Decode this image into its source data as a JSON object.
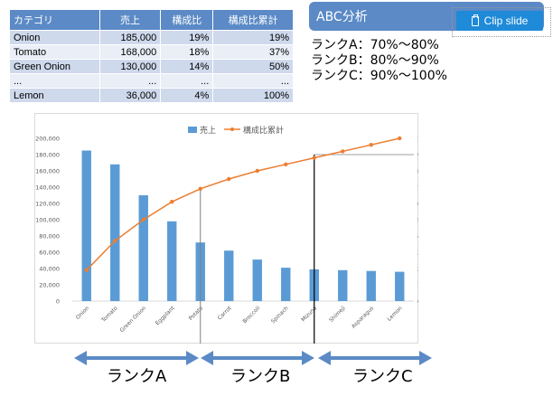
{
  "table": {
    "headers": [
      "カテゴリ",
      "売上",
      "構成比",
      "構成比累計"
    ],
    "rows": [
      [
        "Onion",
        "185,000",
        "19%",
        "19%"
      ],
      [
        "Tomato",
        "168,000",
        "18%",
        "37%"
      ],
      [
        "Green Onion",
        "130,000",
        "14%",
        "50%"
      ],
      [
        "...",
        "...",
        "...",
        "..."
      ],
      [
        "Lemon",
        "36,000",
        "4%",
        "100%"
      ]
    ]
  },
  "abc": {
    "title": "ABC分析",
    "clip_label": "Clip slide",
    "lines": [
      "ランクA：70%～80%",
      "ランクB：80%～90%",
      "ランクC：90%～100%"
    ]
  },
  "chart_data": {
    "type": "bar",
    "categories": [
      "Onion",
      "Tomato",
      "Green Onion",
      "Eggplant",
      "Potato",
      "Carrot",
      "Broccoli",
      "Spinach",
      "Mizuna",
      "Shimeji",
      "Asparagus",
      "Lemon"
    ],
    "series": [
      {
        "name": "売上",
        "type": "bar",
        "color": "#5b9bd5",
        "values": [
          185000,
          168000,
          130000,
          98000,
          72000,
          62000,
          51000,
          41000,
          39000,
          38000,
          37000,
          36000
        ]
      },
      {
        "name": "構成比累計",
        "type": "line",
        "color": "#ed7d31",
        "values": [
          19,
          37,
          50,
          61,
          69,
          75,
          80,
          84,
          88,
          92,
          96,
          100
        ]
      }
    ],
    "ylim": [
      0,
      200000
    ],
    "y_ticks": [
      "0",
      "20,000",
      "40,000",
      "60,000",
      "80,000",
      "100,000",
      "120,000",
      "140,000",
      "160,000",
      "180,000",
      "200,000"
    ],
    "y2lim": [
      0,
      100
    ],
    "y2_ticks": [
      "0%",
      "10%",
      "20%",
      "30%",
      "40%",
      "50%",
      "60%",
      "70%",
      "80%",
      "90%",
      "100%"
    ],
    "legend_position": "top",
    "grid": false
  },
  "ranks": [
    "ランクA",
    "ランクB",
    "ランクC"
  ],
  "colors": {
    "accent": "#5b8ac6",
    "bar": "#5b9bd5",
    "line": "#ed7d31",
    "arrow": "#5b8ac6"
  }
}
